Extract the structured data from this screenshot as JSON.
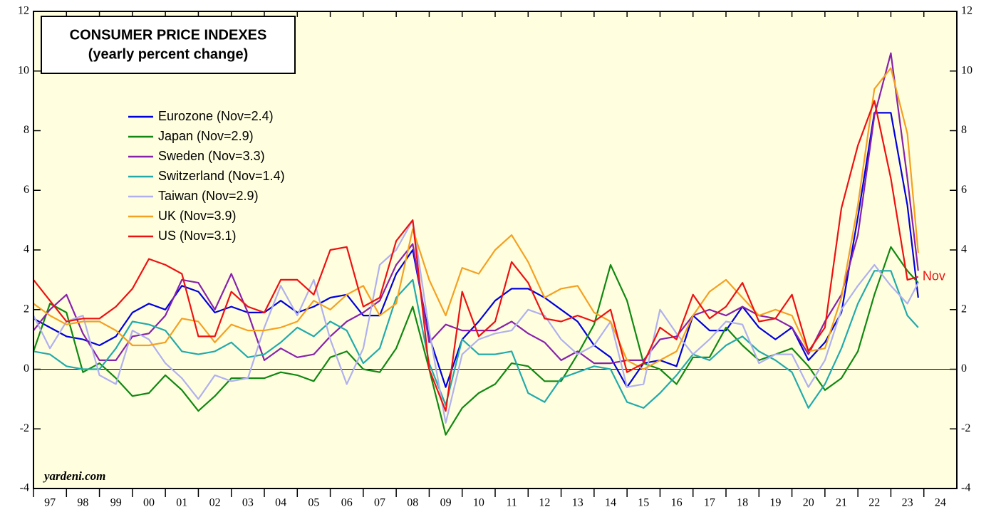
{
  "chart_data": {
    "type": "line",
    "title": "CONSUMER PRICE INDEXES",
    "subtitle": "(yearly percent change)",
    "source": "yardeni.com",
    "annotation": "Nov",
    "x": [
      1997,
      1997.5,
      1998,
      1998.5,
      1999,
      1999.5,
      2000,
      2000.5,
      2001,
      2001.5,
      2002,
      2002.5,
      2003,
      2003.5,
      2004,
      2004.5,
      2005,
      2005.5,
      2006,
      2006.5,
      2007,
      2007.5,
      2008,
      2008.5,
      2009,
      2009.5,
      2010,
      2010.5,
      2011,
      2011.5,
      2012,
      2012.5,
      2013,
      2013.5,
      2014,
      2014.5,
      2015,
      2015.5,
      2016,
      2016.5,
      2017,
      2017.5,
      2018,
      2018.5,
      2019,
      2019.5,
      2020,
      2020.5,
      2021,
      2021.5,
      2022,
      2022.5,
      2023,
      2023.5,
      2023.83
    ],
    "series": [
      {
        "name": "Eurozone (Nov=2.4)",
        "color": "#0000dd",
        "values": [
          1.7,
          1.4,
          1.1,
          1.0,
          0.8,
          1.1,
          1.9,
          2.2,
          2.0,
          2.8,
          2.6,
          1.9,
          2.1,
          1.9,
          1.9,
          2.3,
          1.9,
          2.1,
          2.4,
          2.5,
          1.8,
          1.8,
          3.2,
          4.0,
          1.1,
          -0.6,
          1.0,
          1.6,
          2.3,
          2.7,
          2.7,
          2.4,
          2.0,
          1.6,
          0.8,
          0.4,
          -0.6,
          0.2,
          0.3,
          0.1,
          1.8,
          1.3,
          1.3,
          2.1,
          1.4,
          1.0,
          1.4,
          0.3,
          0.9,
          1.9,
          5.1,
          8.6,
          8.6,
          5.5,
          2.4
        ]
      },
      {
        "name": "Japan (Nov=2.9)",
        "color": "#118811",
        "values": [
          0.6,
          2.2,
          1.9,
          -0.1,
          0.2,
          -0.3,
          -0.9,
          -0.8,
          -0.2,
          -0.7,
          -1.4,
          -0.9,
          -0.3,
          -0.3,
          -0.3,
          -0.1,
          -0.2,
          -0.4,
          0.4,
          0.6,
          0.0,
          -0.1,
          0.7,
          2.1,
          0.0,
          -2.2,
          -1.3,
          -0.8,
          -0.5,
          0.2,
          0.1,
          -0.4,
          -0.4,
          0.5,
          1.5,
          3.5,
          2.3,
          0.2,
          0.0,
          -0.5,
          0.4,
          0.4,
          1.4,
          0.8,
          0.3,
          0.5,
          0.7,
          0.1,
          -0.7,
          -0.3,
          0.6,
          2.5,
          4.1,
          3.3,
          2.9
        ]
      },
      {
        "name": "Sweden (Nov=3.3)",
        "color": "#8822aa",
        "values": [
          1.3,
          2.0,
          2.5,
          1.2,
          0.3,
          0.3,
          1.1,
          1.2,
          1.8,
          3.0,
          2.9,
          2.0,
          3.2,
          1.9,
          0.3,
          0.7,
          0.4,
          0.5,
          1.1,
          1.6,
          1.9,
          2.3,
          3.5,
          4.2,
          0.9,
          1.5,
          1.3,
          1.3,
          1.3,
          1.6,
          1.2,
          0.9,
          0.3,
          0.6,
          0.2,
          0.2,
          0.3,
          0.3,
          1.0,
          1.1,
          1.8,
          2.0,
          1.8,
          2.1,
          1.8,
          1.7,
          1.4,
          0.5,
          1.6,
          2.5,
          4.5,
          8.5,
          10.6,
          6.4,
          3.3
        ]
      },
      {
        "name": "Switzerland (Nov=1.4)",
        "color": "#22aaaa",
        "values": [
          0.6,
          0.5,
          0.1,
          0.0,
          0.0,
          0.7,
          1.6,
          1.5,
          1.3,
          0.6,
          0.5,
          0.6,
          0.9,
          0.4,
          0.5,
          0.9,
          1.4,
          1.1,
          1.6,
          1.3,
          0.2,
          0.7,
          2.4,
          3.0,
          0.2,
          -1.2,
          1.0,
          0.5,
          0.5,
          0.6,
          -0.8,
          -1.1,
          -0.3,
          -0.1,
          0.1,
          0.0,
          -1.1,
          -1.3,
          -0.8,
          -0.2,
          0.5,
          0.3,
          0.8,
          1.1,
          0.6,
          0.3,
          -0.1,
          -1.3,
          -0.5,
          0.7,
          2.2,
          3.3,
          3.3,
          1.8,
          1.4
        ]
      },
      {
        "name": "Taiwan (Nov=2.9)",
        "color": "#b0b0f0",
        "values": [
          1.8,
          0.7,
          1.6,
          1.8,
          -0.2,
          -0.5,
          1.3,
          1.0,
          0.2,
          -0.3,
          -1.0,
          -0.2,
          -0.4,
          -0.3,
          1.4,
          2.8,
          1.8,
          3.0,
          1.0,
          -0.5,
          0.7,
          3.5,
          4.0,
          5.0,
          1.3,
          -1.8,
          0.5,
          1.0,
          1.2,
          1.3,
          2.0,
          1.8,
          1.0,
          0.5,
          0.8,
          1.6,
          -0.6,
          -0.5,
          2.0,
          1.2,
          0.5,
          1.0,
          1.6,
          1.5,
          0.2,
          0.5,
          0.5,
          -0.6,
          0.3,
          2.0,
          2.8,
          3.5,
          2.8,
          2.2,
          2.9
        ]
      },
      {
        "name": "UK (Nov=3.9)",
        "color": "#f5a020",
        "values": [
          2.2,
          1.8,
          1.5,
          1.6,
          1.6,
          1.3,
          0.8,
          0.8,
          0.9,
          1.7,
          1.6,
          0.9,
          1.5,
          1.3,
          1.3,
          1.4,
          1.6,
          2.3,
          2.0,
          2.5,
          2.8,
          1.8,
          2.2,
          4.7,
          3.0,
          1.8,
          3.4,
          3.2,
          4.0,
          4.5,
          3.6,
          2.4,
          2.7,
          2.8,
          1.9,
          1.6,
          0.3,
          0.0,
          0.3,
          0.6,
          1.8,
          2.6,
          3.0,
          2.4,
          1.8,
          2.0,
          1.8,
          0.6,
          0.7,
          2.4,
          5.5,
          9.4,
          10.1,
          7.9,
          3.9
        ]
      },
      {
        "name": "US (Nov=3.1)",
        "color": "#ee1111",
        "values": [
          3.0,
          2.3,
          1.6,
          1.7,
          1.7,
          2.1,
          2.7,
          3.7,
          3.5,
          3.2,
          1.1,
          1.1,
          2.6,
          2.1,
          1.9,
          3.0,
          3.0,
          2.5,
          4.0,
          4.1,
          2.1,
          2.4,
          4.3,
          5.0,
          0.0,
          -1.4,
          2.6,
          1.1,
          1.6,
          3.6,
          2.9,
          1.7,
          1.6,
          1.8,
          1.6,
          2.0,
          -0.1,
          0.2,
          1.4,
          1.0,
          2.5,
          1.7,
          2.1,
          2.9,
          1.6,
          1.7,
          2.5,
          0.6,
          1.4,
          5.4,
          7.5,
          9.0,
          6.4,
          3.0,
          3.1
        ]
      }
    ],
    "xlim": [
      1997,
      2025
    ],
    "xticks": [
      {
        "value": 1997.5,
        "label": "97"
      },
      {
        "value": 1998.5,
        "label": "98"
      },
      {
        "value": 1999.5,
        "label": "99"
      },
      {
        "value": 2000.5,
        "label": "00"
      },
      {
        "value": 2001.5,
        "label": "01"
      },
      {
        "value": 2002.5,
        "label": "02"
      },
      {
        "value": 2003.5,
        "label": "03"
      },
      {
        "value": 2004.5,
        "label": "04"
      },
      {
        "value": 2005.5,
        "label": "05"
      },
      {
        "value": 2006.5,
        "label": "06"
      },
      {
        "value": 2007.5,
        "label": "07"
      },
      {
        "value": 2008.5,
        "label": "08"
      },
      {
        "value": 2009.5,
        "label": "09"
      },
      {
        "value": 2010.5,
        "label": "10"
      },
      {
        "value": 2011.5,
        "label": "11"
      },
      {
        "value": 2012.5,
        "label": "12"
      },
      {
        "value": 2013.5,
        "label": "13"
      },
      {
        "value": 2014.5,
        "label": "14"
      },
      {
        "value": 2015.5,
        "label": "15"
      },
      {
        "value": 2016.5,
        "label": "16"
      },
      {
        "value": 2017.5,
        "label": "17"
      },
      {
        "value": 2018.5,
        "label": "18"
      },
      {
        "value": 2019.5,
        "label": "19"
      },
      {
        "value": 2020.5,
        "label": "20"
      },
      {
        "value": 2021.5,
        "label": "21"
      },
      {
        "value": 2022.5,
        "label": "22"
      },
      {
        "value": 2023.5,
        "label": "23"
      },
      {
        "value": 2024.5,
        "label": "24"
      }
    ],
    "ylim": [
      -4,
      12
    ],
    "yticks": [
      -4,
      -2,
      0,
      2,
      4,
      6,
      8,
      10,
      12
    ],
    "y2lim": [
      -4,
      12
    ],
    "y2ticks": [
      -4,
      -2,
      0,
      2,
      4,
      6,
      8,
      10,
      12
    ]
  }
}
